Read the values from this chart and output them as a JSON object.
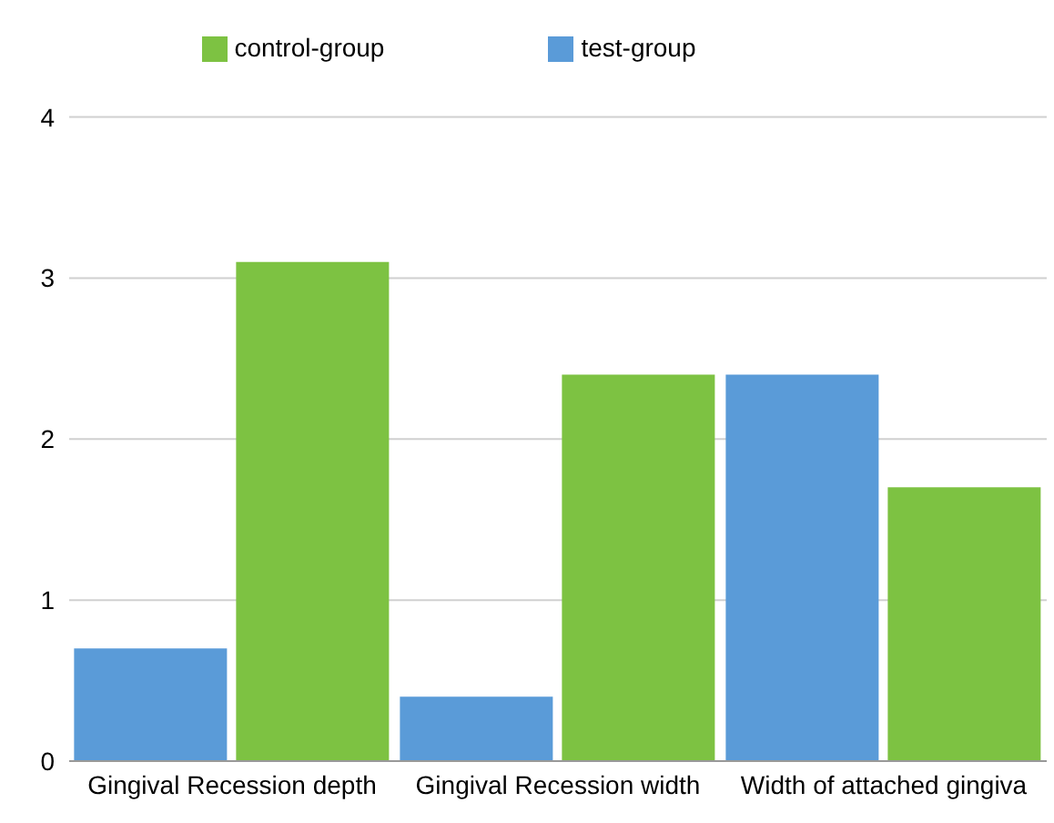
{
  "chart_data": {
    "type": "bar",
    "categories": [
      "Gingival Recession depth",
      "Gingival Recession width",
      "Width of attached gingiva"
    ],
    "series": [
      {
        "name": "test-group",
        "color": "#5a9bd8",
        "values": [
          0.7,
          0.4,
          2.4
        ]
      },
      {
        "name": "control-group",
        "color": "#7dc242",
        "values": [
          3.1,
          2.4,
          1.7
        ]
      }
    ],
    "ylim": [
      0,
      4
    ],
    "yticks": [
      0,
      1,
      2,
      3,
      4
    ],
    "grid": "y",
    "legend": "top"
  }
}
